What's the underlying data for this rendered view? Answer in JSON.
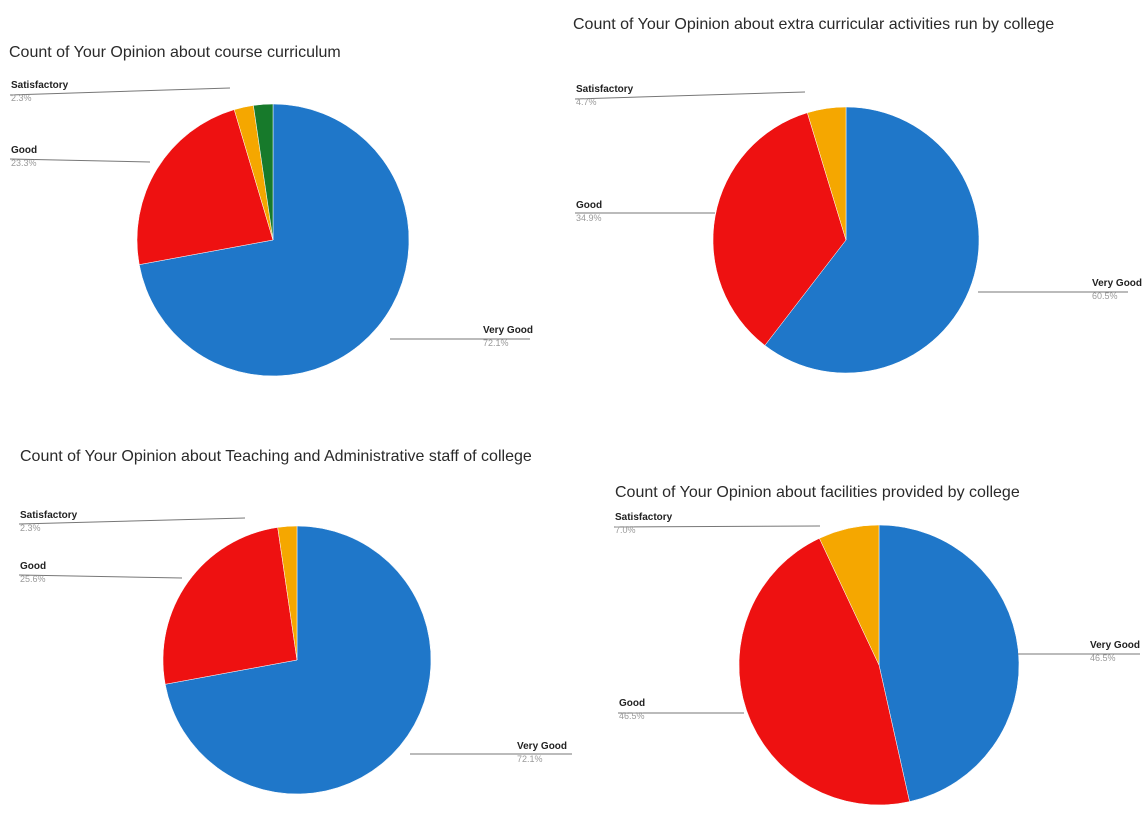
{
  "chart_data": [
    {
      "type": "pie",
      "title": "Count of Your Opinion about course curriculum",
      "slices": [
        {
          "label": "Very Good",
          "value": 72.1,
          "color": "#1f77c9"
        },
        {
          "label": "Good",
          "value": 23.3,
          "color": "#ee1111"
        },
        {
          "label": "Satisfactory",
          "value": 2.3,
          "color": "#f5a700"
        },
        {
          "label": "",
          "value": 2.3,
          "color": "#177a2b"
        }
      ],
      "labels": [
        {
          "name": "Satisfactory",
          "pct": "2.3%"
        },
        {
          "name": "Good",
          "pct": "23.3%"
        },
        {
          "name": "Very Good",
          "pct": "72.1%"
        }
      ]
    },
    {
      "type": "pie",
      "title": "Count of Your Opinion about extra curricular activities run by college",
      "slices": [
        {
          "label": "Very Good",
          "value": 60.5,
          "color": "#1f77c9"
        },
        {
          "label": "Good",
          "value": 34.9,
          "color": "#ee1111"
        },
        {
          "label": "Satisfactory",
          "value": 4.7,
          "color": "#f5a700"
        }
      ],
      "labels": [
        {
          "name": "Satisfactory",
          "pct": "4.7%"
        },
        {
          "name": "Good",
          "pct": "34.9%"
        },
        {
          "name": "Very Good",
          "pct": "60.5%"
        }
      ]
    },
    {
      "type": "pie",
      "title": "Count of Your Opinion about Teaching and Administrative staff of college",
      "slices": [
        {
          "label": "Very Good",
          "value": 72.1,
          "color": "#1f77c9"
        },
        {
          "label": "Good",
          "value": 25.6,
          "color": "#ee1111"
        },
        {
          "label": "Satisfactory",
          "value": 2.3,
          "color": "#f5a700"
        }
      ],
      "labels": [
        {
          "name": "Satisfactory",
          "pct": "2.3%"
        },
        {
          "name": "Good",
          "pct": "25.6%"
        },
        {
          "name": "Very Good",
          "pct": "72.1%"
        }
      ]
    },
    {
      "type": "pie",
      "title": "Count of Your Opinion about facilities provided by college",
      "slices": [
        {
          "label": "Very Good",
          "value": 46.5,
          "color": "#1f77c9"
        },
        {
          "label": "Good",
          "value": 46.5,
          "color": "#ee1111"
        },
        {
          "label": "Satisfactory",
          "value": 7.0,
          "color": "#f5a700"
        }
      ],
      "labels": [
        {
          "name": "Satisfactory",
          "pct": "7.0%"
        },
        {
          "name": "Good",
          "pct": "46.5%"
        },
        {
          "name": "Very Good",
          "pct": "46.5%"
        }
      ]
    }
  ]
}
